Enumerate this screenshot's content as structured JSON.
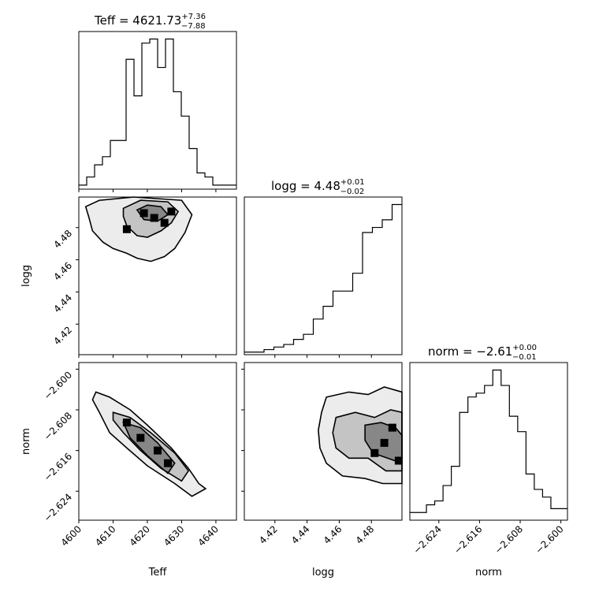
{
  "chart_data": {
    "type": "corner",
    "parameters": [
      "Teff",
      "logg",
      "norm"
    ],
    "titles": [
      {
        "param": "Teff",
        "prefix": "Teff = ",
        "value": "4621.73",
        "plus": "+7.36",
        "minus": "−7.88"
      },
      {
        "param": "logg",
        "prefix": "logg = ",
        "value": "4.48",
        "plus": "+0.01",
        "minus": "−0.02"
      },
      {
        "param": "norm",
        "prefix": "norm = ",
        "value": "−2.61",
        "plus": "+0.00",
        "minus": "−0.01"
      }
    ],
    "ranges": {
      "Teff": [
        4600,
        4646
      ],
      "logg": [
        4.401,
        4.499
      ],
      "norm": [
        -2.6297,
        -2.5987
      ]
    },
    "ticks": {
      "Teff": [
        {
          "v": 4600,
          "label": "4600"
        },
        {
          "v": 4610,
          "label": "4610"
        },
        {
          "v": 4620,
          "label": "4620"
        },
        {
          "v": 4630,
          "label": "4630"
        },
        {
          "v": 4640,
          "label": "4640"
        }
      ],
      "logg": [
        {
          "v": 4.42,
          "label": "4.42"
        },
        {
          "v": 4.44,
          "label": "4.44"
        },
        {
          "v": 4.46,
          "label": "4.46"
        },
        {
          "v": 4.48,
          "label": "4.48"
        }
      ],
      "norm": [
        {
          "v": -2.624,
          "label": "−2.624"
        },
        {
          "v": -2.616,
          "label": "−2.616"
        },
        {
          "v": -2.608,
          "label": "−2.608"
        },
        {
          "v": -2.6,
          "label": "−2.600"
        }
      ]
    },
    "histograms": {
      "Teff": {
        "edges": [
          4600,
          4646
        ],
        "counts": [
          1,
          3,
          6,
          8,
          12,
          12,
          32,
          23,
          36,
          37,
          30,
          37,
          24,
          18,
          10,
          4,
          3,
          1,
          1,
          1
        ]
      },
      "logg": {
        "edges": [
          4.401,
          4.499
        ],
        "counts": [
          1,
          1,
          2,
          3,
          4,
          6,
          8,
          14,
          19,
          25,
          25,
          32,
          48,
          50,
          53,
          59
        ]
      },
      "norm": {
        "edges": [
          -2.6297,
          -2.5987
        ],
        "counts": [
          2,
          2,
          4,
          5,
          9,
          14,
          28,
          32,
          33,
          35,
          39,
          35,
          27,
          23,
          12,
          8,
          6,
          3,
          3
        ]
      }
    },
    "contours": {
      "logg_vs_Teff": {
        "x": "Teff",
        "y": "logg",
        "levels": [
          [
            [
              4602,
              4.493
            ],
            [
              4606,
              4.497
            ],
            [
              4616,
              4.499
            ],
            [
              4630,
              4.497
            ],
            [
              4633,
              4.488
            ],
            [
              4631,
              4.477
            ],
            [
              4628,
              4.467
            ],
            [
              4625,
              4.462
            ],
            [
              4621,
              4.459
            ],
            [
              4617,
              4.461
            ],
            [
              4614,
              4.464
            ],
            [
              4610,
              4.467
            ],
            [
              4607,
              4.471
            ],
            [
              4604,
              4.478
            ],
            [
              4603,
              4.486
            ],
            [
              4602,
              4.493
            ]
          ],
          [
            [
              4613,
              4.492
            ],
            [
              4618,
              4.497
            ],
            [
              4626,
              4.496
            ],
            [
              4629,
              4.49
            ],
            [
              4627,
              4.483
            ],
            [
              4624,
              4.478
            ],
            [
              4620,
              4.474
            ],
            [
              4617,
              4.475
            ],
            [
              4614,
              4.481
            ],
            [
              4613,
              4.487
            ],
            [
              4613,
              4.492
            ]
          ],
          [
            [
              4617,
              4.491
            ],
            [
              4620,
              4.494
            ],
            [
              4624,
              4.493
            ],
            [
              4626,
              4.488
            ],
            [
              4623,
              4.484
            ],
            [
              4619,
              4.485
            ],
            [
              4617,
              4.491
            ]
          ]
        ]
      },
      "norm_vs_Teff": {
        "x": "Teff",
        "y": "norm",
        "levels": [
          [
            [
              4605,
              -2.6045
            ],
            [
              4609,
              -2.6055
            ],
            [
              4615,
              -2.608
            ],
            [
              4620,
              -2.611
            ],
            [
              4627,
              -2.6155
            ],
            [
              4632,
              -2.6195
            ],
            [
              4635,
              -2.6225
            ],
            [
              4637,
              -2.6235
            ],
            [
              4633,
              -2.625
            ],
            [
              4628,
              -2.6225
            ],
            [
              4620,
              -2.619
            ],
            [
              4614,
              -2.6155
            ],
            [
              4609,
              -2.6125
            ],
            [
              4606,
              -2.6085
            ],
            [
              4604,
              -2.606
            ],
            [
              4605,
              -2.6045
            ]
          ],
          [
            [
              4610,
              -2.6085
            ],
            [
              4615,
              -2.6095
            ],
            [
              4621,
              -2.6125
            ],
            [
              4628,
              -2.6165
            ],
            [
              4632,
              -2.62
            ],
            [
              4630,
              -2.622
            ],
            [
              4624,
              -2.6195
            ],
            [
              4618,
              -2.616
            ],
            [
              4613,
              -2.6125
            ],
            [
              4610,
              -2.61
            ],
            [
              4610,
              -2.6085
            ]
          ],
          [
            [
              4613,
              -2.6105
            ],
            [
              4618,
              -2.6115
            ],
            [
              4623,
              -2.6145
            ],
            [
              4628,
              -2.6185
            ],
            [
              4626,
              -2.6205
            ],
            [
              4620,
              -2.617
            ],
            [
              4615,
              -2.6135
            ],
            [
              4613,
              -2.6105
            ]
          ]
        ]
      },
      "norm_vs_logg": {
        "x": "logg",
        "y": "norm",
        "levels": [
          [
            [
              4.452,
              -2.6055
            ],
            [
              4.466,
              -2.6045
            ],
            [
              4.478,
              -2.605
            ],
            [
              4.488,
              -2.6035
            ],
            [
              4.499,
              -2.6045
            ],
            [
              4.499,
              -2.6225
            ],
            [
              4.487,
              -2.6225
            ],
            [
              4.476,
              -2.6215
            ],
            [
              4.462,
              -2.621
            ],
            [
              4.452,
              -2.6185
            ],
            [
              4.448,
              -2.6155
            ],
            [
              4.447,
              -2.612
            ],
            [
              4.449,
              -2.6085
            ],
            [
              4.452,
              -2.6055
            ]
          ],
          [
            [
              4.458,
              -2.6095
            ],
            [
              4.47,
              -2.6085
            ],
            [
              4.482,
              -2.6095
            ],
            [
              4.492,
              -2.608
            ],
            [
              4.499,
              -2.6085
            ],
            [
              4.499,
              -2.62
            ],
            [
              4.489,
              -2.62
            ],
            [
              4.478,
              -2.6175
            ],
            [
              4.466,
              -2.6175
            ],
            [
              4.458,
              -2.6155
            ],
            [
              4.456,
              -2.6125
            ],
            [
              4.458,
              -2.6095
            ]
          ],
          [
            [
              4.476,
              -2.611
            ],
            [
              4.486,
              -2.6105
            ],
            [
              4.495,
              -2.6115
            ],
            [
              4.499,
              -2.613
            ],
            [
              4.499,
              -2.6185
            ],
            [
              4.49,
              -2.6175
            ],
            [
              4.481,
              -2.6165
            ],
            [
              4.476,
              -2.614
            ],
            [
              4.476,
              -2.611
            ]
          ]
        ]
      }
    },
    "density_peaks": {
      "logg_vs_Teff": [
        [
          4619,
          4.489
        ],
        [
          4622,
          4.486
        ],
        [
          4625,
          4.483
        ],
        [
          4627,
          4.49
        ],
        [
          4614,
          4.479
        ]
      ],
      "norm_vs_Teff": [
        [
          4626,
          -2.6185
        ],
        [
          4618,
          -2.6135
        ],
        [
          4623,
          -2.616
        ],
        [
          4614,
          -2.6105
        ]
      ],
      "norm_vs_logg": [
        [
          4.488,
          -2.6145
        ],
        [
          4.493,
          -2.6115
        ],
        [
          4.482,
          -2.6165
        ],
        [
          4.497,
          -2.618
        ]
      ]
    },
    "axis_labels": {
      "x": [
        "Teff",
        "logg",
        "norm"
      ],
      "y": [
        "",
        "logg",
        "norm"
      ]
    },
    "line_color": "#000000",
    "density_color": "#000000"
  }
}
